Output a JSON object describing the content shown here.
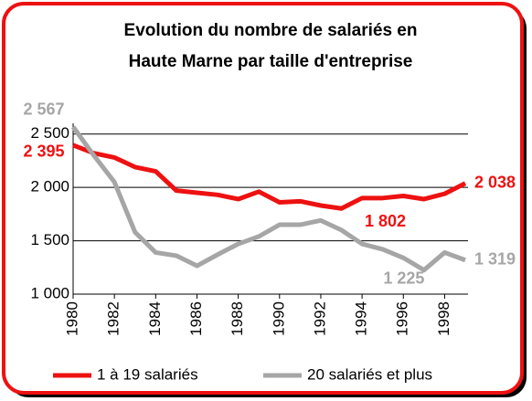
{
  "chart_data": {
    "type": "line",
    "title": [
      "Evolution du nombre de salariés en",
      "Haute Marne par taille d'entreprise"
    ],
    "x": [
      1980,
      1981,
      1982,
      1983,
      1984,
      1985,
      1986,
      1987,
      1988,
      1989,
      1990,
      1991,
      1992,
      1993,
      1994,
      1995,
      1996,
      1997,
      1998,
      1999
    ],
    "series": [
      {
        "name": "1 à 19 salariés",
        "color": "#ee1111",
        "values": [
          2395,
          2320,
          2280,
          2190,
          2150,
          1970,
          1950,
          1930,
          1890,
          1960,
          1860,
          1870,
          1830,
          1802,
          1900,
          1900,
          1920,
          1890,
          1940,
          2038
        ],
        "value_labels": [
          "2 395",
          null,
          null,
          null,
          null,
          null,
          null,
          null,
          null,
          null,
          null,
          null,
          null,
          "1 802",
          null,
          null,
          null,
          null,
          null,
          "2 038"
        ]
      },
      {
        "name": "20 salariés et plus",
        "color": "#a6a6a6",
        "values": [
          2567,
          2300,
          2050,
          1580,
          1390,
          1360,
          1265,
          1370,
          1470,
          1540,
          1650,
          1650,
          1690,
          1600,
          1470,
          1420,
          1340,
          1225,
          1390,
          1319
        ],
        "value_labels": [
          "2 567",
          null,
          null,
          null,
          null,
          null,
          null,
          null,
          null,
          null,
          null,
          null,
          null,
          null,
          null,
          null,
          null,
          "1 225",
          null,
          "1 319"
        ]
      }
    ],
    "xlim": [
      1980,
      1999
    ],
    "xticks": [
      1980,
      1982,
      1984,
      1986,
      1988,
      1990,
      1992,
      1994,
      1996,
      1998
    ],
    "ylim": [
      1000,
      2600
    ],
    "yticks": [
      {
        "value": 1000,
        "label": "1 000"
      },
      {
        "value": 1500,
        "label": "1 500"
      },
      {
        "value": 2000,
        "label": "2 000"
      },
      {
        "value": 2500,
        "label": "2 500"
      }
    ],
    "grid": true,
    "legend": "bottom"
  }
}
